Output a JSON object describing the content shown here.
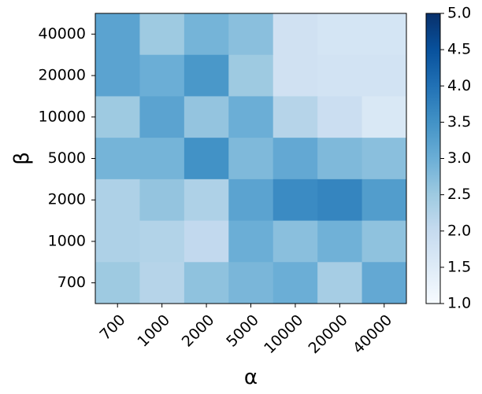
{
  "chart_data": {
    "type": "heatmap",
    "xlabel": "α",
    "ylabel": "β",
    "x_categories": [
      "700",
      "1000",
      "2000",
      "5000",
      "10000",
      "20000",
      "40000"
    ],
    "y_categories": [
      "40000",
      "20000",
      "10000",
      "5000",
      "2000",
      "1000",
      "700"
    ],
    "values": [
      [
        3.2,
        2.5,
        2.9,
        2.7,
        1.8,
        1.7,
        1.7
      ],
      [
        3.2,
        3.0,
        3.4,
        2.5,
        1.8,
        1.75,
        1.75
      ],
      [
        2.5,
        3.2,
        2.6,
        3.0,
        2.2,
        1.9,
        1.6
      ],
      [
        2.9,
        2.9,
        3.5,
        2.8,
        3.1,
        2.8,
        2.7
      ],
      [
        2.3,
        2.6,
        2.3,
        3.2,
        3.6,
        3.7,
        3.3
      ],
      [
        2.3,
        2.25,
        2.05,
        3.0,
        2.7,
        2.95,
        2.65
      ],
      [
        2.5,
        2.2,
        2.65,
        2.85,
        3.0,
        2.4,
        3.1
      ]
    ],
    "colorbar": {
      "min": 1.0,
      "max": 5.0,
      "ticks": [
        "1.0",
        "1.5",
        "2.0",
        "2.5",
        "3.0",
        "3.5",
        "4.0",
        "4.5",
        "5.0"
      ],
      "colormap": "Blues"
    }
  }
}
